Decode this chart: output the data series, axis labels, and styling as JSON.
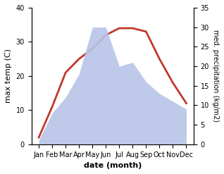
{
  "months": [
    "Jan",
    "Feb",
    "Mar",
    "Apr",
    "May",
    "Jun",
    "Jul",
    "Aug",
    "Sep",
    "Oct",
    "Nov",
    "Dec"
  ],
  "temp": [
    2,
    11,
    21,
    25,
    28,
    32,
    34,
    34,
    33,
    25,
    18,
    12
  ],
  "precip": [
    1,
    8,
    12,
    18,
    30,
    30,
    20,
    21,
    16,
    13,
    11,
    9
  ],
  "temp_color": "#c0392b",
  "precip_fill_color": "#b8c4e8",
  "ylabel_left": "max temp (C)",
  "ylabel_right": "med. precipitation (kg/m2)",
  "xlabel": "date (month)",
  "ylim_left": [
    0,
    40
  ],
  "ylim_right": [
    0,
    35
  ],
  "yticks_left": [
    0,
    10,
    20,
    30,
    40
  ],
  "yticks_right": [
    0,
    5,
    10,
    15,
    20,
    25,
    30,
    35
  ],
  "bg_color": "#ffffff",
  "line_width": 2.0
}
